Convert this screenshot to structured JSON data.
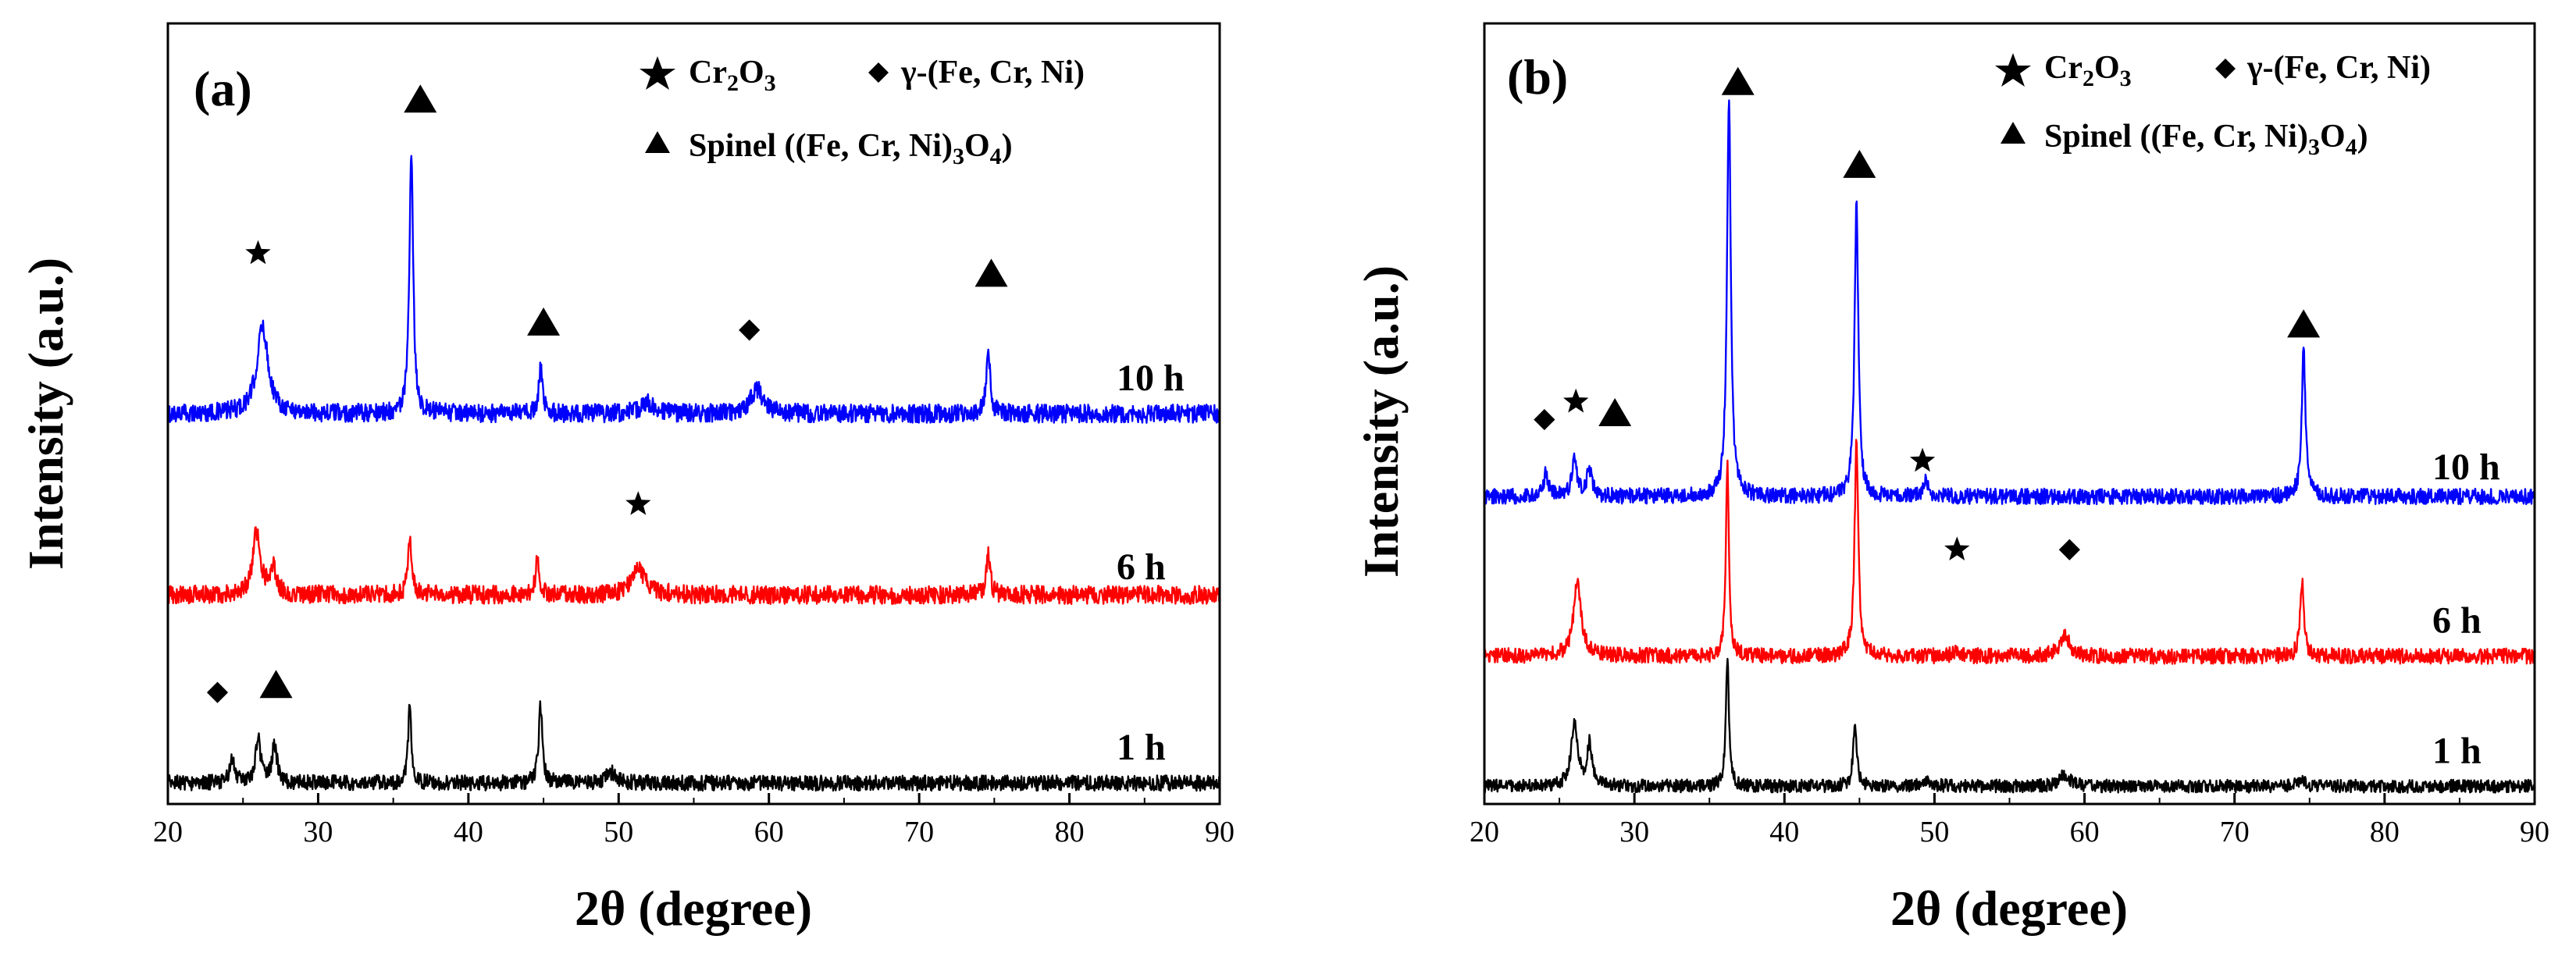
{
  "chart_data": [
    {
      "type": "line",
      "panel_label": "(a)",
      "xlabel": "2θ (degree)",
      "ylabel": "Intensity (a.u.)",
      "xlim": [
        20,
        90
      ],
      "xticks": [
        20,
        30,
        40,
        50,
        60,
        70,
        80,
        90
      ],
      "legend": {
        "placement": "top-right",
        "items": [
          {
            "symbol": "star",
            "label": "Cr2O3"
          },
          {
            "symbol": "diamond",
            "label": "γ-(Fe, Cr, Ni)"
          },
          {
            "symbol": "triangle",
            "label": "Spinel ((Fe, Cr, Ni)3O4)"
          }
        ]
      },
      "series": [
        {
          "name": "10 h",
          "label": "10 h",
          "color": "#0000ff",
          "baseline": 5.6,
          "noise": 0.06,
          "peaks": [
            [
              26.3,
              1.25,
              0.45
            ],
            [
              36.2,
              3.7,
              0.15
            ],
            [
              44.8,
              0.65,
              0.15
            ],
            [
              52.0,
              0.15,
              0.6
            ],
            [
              59.2,
              0.35,
              0.5
            ],
            [
              74.6,
              0.9,
              0.15
            ]
          ],
          "markers": [
            {
              "symbol": "star",
              "x": 26.0,
              "y": 7.9
            },
            {
              "symbol": "triangle",
              "x": 36.8,
              "y": 10.1
            },
            {
              "symbol": "triangle",
              "x": 45.0,
              "y": 6.9
            },
            {
              "symbol": "diamond",
              "x": 58.7,
              "y": 6.8
            },
            {
              "symbol": "triangle",
              "x": 74.8,
              "y": 7.6
            }
          ]
        },
        {
          "name": "6 h",
          "label": "6 h",
          "color": "#ff0000",
          "baseline": 3.0,
          "noise": 0.06,
          "peaks": [
            [
              25.9,
              0.9,
              0.3
            ],
            [
              27.0,
              0.4,
              0.25
            ],
            [
              36.1,
              0.8,
              0.15
            ],
            [
              44.6,
              0.55,
              0.15
            ],
            [
              51.3,
              0.35,
              0.6
            ],
            [
              74.6,
              0.6,
              0.15
            ]
          ],
          "markers": [
            {
              "symbol": "star",
              "x": 51.3,
              "y": 4.3
            }
          ]
        },
        {
          "name": "1 h",
          "label": "1 h",
          "color": "#000000",
          "baseline": 0.3,
          "noise": 0.05,
          "peaks": [
            [
              24.3,
              0.35,
              0.2
            ],
            [
              26.0,
              0.65,
              0.2
            ],
            [
              27.1,
              0.55,
              0.2
            ],
            [
              36.1,
              1.2,
              0.12
            ],
            [
              44.8,
              1.1,
              0.15
            ],
            [
              49.5,
              0.15,
              0.4
            ]
          ],
          "markers": [
            {
              "symbol": "diamond",
              "x": 23.3,
              "y": 1.6
            },
            {
              "symbol": "triangle",
              "x": 27.2,
              "y": 1.7
            }
          ]
        }
      ]
    },
    {
      "type": "line",
      "panel_label": "(b)",
      "xlabel": "2θ (degree)",
      "ylabel": "Intensity (a.u.)",
      "xlim": [
        20,
        90
      ],
      "xticks": [
        20,
        30,
        40,
        50,
        60,
        70,
        80,
        90
      ],
      "legend": {
        "placement": "top-right",
        "items": [
          {
            "symbol": "star",
            "label": "Cr2O3"
          },
          {
            "symbol": "diamond",
            "label": "γ-(Fe, Cr, Ni)"
          },
          {
            "symbol": "triangle",
            "label": "Spinel ((Fe, Cr, Ni)3O4)"
          }
        ]
      },
      "series": [
        {
          "name": "10 h",
          "label": "10 h",
          "color": "#0000ff",
          "baseline": 5.2,
          "noise": 0.06,
          "peaks": [
            [
              24.1,
              0.45,
              0.15
            ],
            [
              26.0,
              0.65,
              0.2
            ],
            [
              27.0,
              0.45,
              0.2
            ],
            [
              36.3,
              6.8,
              0.15
            ],
            [
              44.8,
              5.0,
              0.15
            ],
            [
              49.4,
              0.25,
              0.2
            ],
            [
              74.6,
              2.5,
              0.15
            ]
          ],
          "markers": [
            {
              "symbol": "diamond",
              "x": 24.0,
              "y": 6.5
            },
            {
              "symbol": "star",
              "x": 26.1,
              "y": 6.8
            },
            {
              "symbol": "triangle",
              "x": 28.7,
              "y": 6.6
            },
            {
              "symbol": "triangle",
              "x": 36.9,
              "y": 12.2
            },
            {
              "symbol": "triangle",
              "x": 45.0,
              "y": 10.8
            },
            {
              "symbol": "star",
              "x": 49.2,
              "y": 5.8
            },
            {
              "symbol": "triangle",
              "x": 74.6,
              "y": 8.1
            }
          ]
        },
        {
          "name": "6 h",
          "label": "6 h",
          "color": "#ff0000",
          "baseline": 2.5,
          "noise": 0.06,
          "peaks": [
            [
              26.2,
              1.25,
              0.3
            ],
            [
              36.2,
              3.3,
              0.12
            ],
            [
              44.8,
              3.6,
              0.15
            ],
            [
              51.5,
              0.1,
              0.3
            ],
            [
              58.7,
              0.35,
              0.4
            ],
            [
              74.5,
              1.3,
              0.15
            ]
          ],
          "markers": [
            {
              "symbol": "star",
              "x": 51.5,
              "y": 4.3
            },
            {
              "symbol": "diamond",
              "x": 59.0,
              "y": 4.3
            }
          ]
        },
        {
          "name": "1 h",
          "label": "1 h",
          "color": "#000000",
          "baseline": 0.3,
          "noise": 0.05,
          "peaks": [
            [
              26.0,
              1.1,
              0.25
            ],
            [
              27.0,
              0.7,
              0.2
            ],
            [
              36.2,
              2.2,
              0.12
            ],
            [
              44.7,
              1.0,
              0.15
            ],
            [
              49.4,
              0.1,
              0.4
            ],
            [
              58.7,
              0.2,
              0.4
            ],
            [
              74.4,
              0.1,
              0.3
            ]
          ],
          "markers": []
        }
      ]
    }
  ]
}
